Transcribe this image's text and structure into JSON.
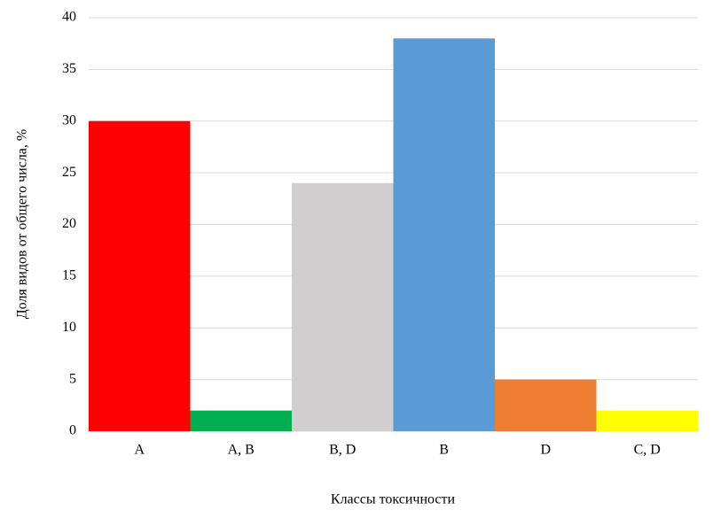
{
  "chart_data": {
    "type": "bar",
    "x_label": "Классы токсичности",
    "y_label": "Доля видов от общего числа, %",
    "categories": [
      "A",
      "A, B",
      "B, D",
      "B",
      "D",
      "C, D"
    ],
    "values": [
      30,
      2,
      24,
      38,
      5,
      2
    ],
    "colors": [
      "#ff0000",
      "#00b050",
      "#d0cece",
      "#5b9bd5",
      "#ed7d31",
      "#ffff00"
    ],
    "ylim": [
      0,
      40
    ],
    "yticks": [
      0,
      5,
      10,
      15,
      20,
      25,
      30,
      35,
      40
    ],
    "grid": true
  }
}
